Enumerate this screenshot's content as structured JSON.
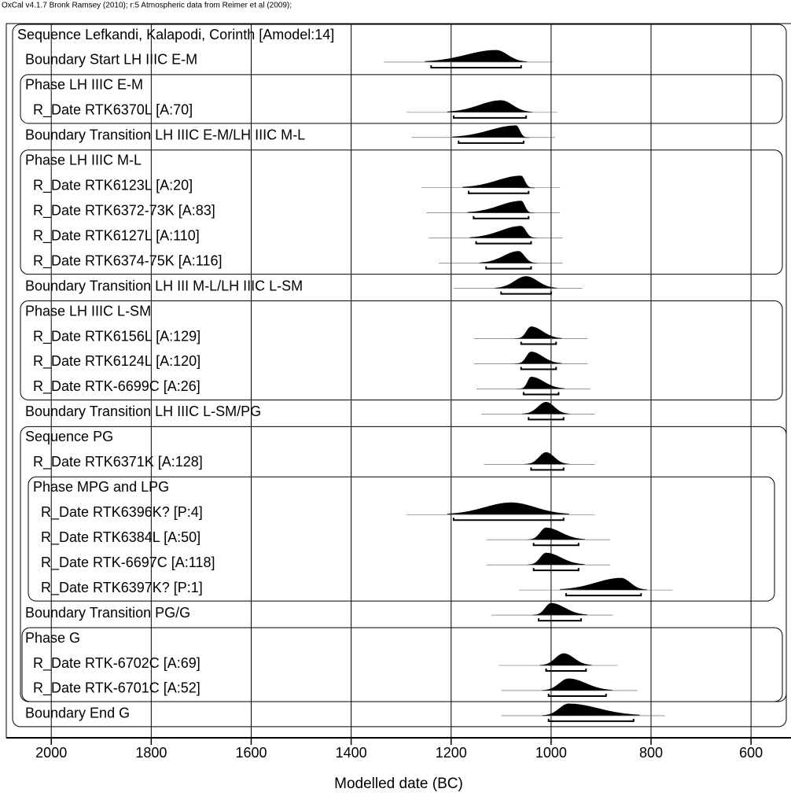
{
  "chart_data": {
    "type": "oxcal",
    "note": "OxCal v4.1.7 Bronk Ramsey (2010); r:5 Atmospheric data from Reimer et al (2009);",
    "xlabel": "Modelled date (BC)",
    "xlim": [
      2090,
      520
    ],
    "xticks": [
      2000,
      1800,
      1600,
      1400,
      1200,
      1000,
      800,
      600
    ],
    "grid": true,
    "color": "#000000",
    "rows": [
      {
        "label": "Sequence Lefkandi, Kalapodi, Corinth [Amodel:14]"
      },
      {
        "label": "Boundary Start LH IIIC E-M",
        "range": [
          1240,
          1060
        ],
        "mode": 1110
      },
      {
        "label": "Phase LH IIIC E-M"
      },
      {
        "label": "R_Date RTK6370L [A:70]",
        "range": [
          1195,
          1050
        ],
        "mode": 1100
      },
      {
        "label": "Boundary Transition LH IIIC E-M/LH IIIC M-L",
        "range": [
          1185,
          1055
        ],
        "mode": 1070
      },
      {
        "label": "Phase LH IIIC M-L"
      },
      {
        "label": "R_Date RTK6123L [A:20]",
        "range": [
          1165,
          1045
        ],
        "mode": 1060
      },
      {
        "label": "R_Date RTK6372-73K [A:83]",
        "range": [
          1155,
          1045
        ],
        "mode": 1060
      },
      {
        "label": "R_Date RTK6127L [A:110]",
        "range": [
          1150,
          1040
        ],
        "mode": 1060
      },
      {
        "label": "R_Date RTK6374-75K [A:116]",
        "range": [
          1130,
          1040
        ],
        "mode": 1065
      },
      {
        "label": "Boundary Transition LH III M-L/LH IIIC L-SM",
        "range": [
          1100,
          1000
        ],
        "mode": 1050
      },
      {
        "label": "Phase LH IIIC L-SM"
      },
      {
        "label": "R_Date RTK6156L [A:129]",
        "range": [
          1060,
          990
        ],
        "mode": 1040
      },
      {
        "label": "R_Date RTK6124L [A:120]",
        "range": [
          1060,
          990
        ],
        "mode": 1040
      },
      {
        "label": "R_Date RTK-6699C [A:26]",
        "range": [
          1055,
          985
        ],
        "mode": 1040
      },
      {
        "label": "Boundary Transition LH IIIC L-SM/PG",
        "range": [
          1045,
          975
        ],
        "mode": 1010
      },
      {
        "label": "Sequence PG"
      },
      {
        "label": "R_Date RTK6371K [A:128]",
        "range": [
          1040,
          975
        ],
        "mode": 1010
      },
      {
        "label": "Phase MPG and LPG"
      },
      {
        "label": "R_Date RTK6396K? [P:4]",
        "range": [
          1195,
          975
        ],
        "mode": 1080
      },
      {
        "label": "R_Date RTK6384L [A:50]",
        "range": [
          1035,
          945
        ],
        "mode": 1010
      },
      {
        "label": "R_Date RTK-6697C [A:118]",
        "range": [
          1035,
          945
        ],
        "mode": 1010
      },
      {
        "label": "R_Date RTK6397K? [P:1]",
        "range": [
          970,
          820
        ],
        "mode": 860
      },
      {
        "label": "Boundary Transition PG/G",
        "range": [
          1025,
          940
        ],
        "mode": 1000
      },
      {
        "label": "Phase G"
      },
      {
        "label": "R_Date RTK-6702C [A:69]",
        "range": [
          1010,
          930
        ],
        "mode": 975
      },
      {
        "label": "R_Date RTK-6701C [A:52]",
        "range": [
          1005,
          890
        ],
        "mode": 965
      },
      {
        "label": "Boundary End G",
        "range": [
          1005,
          835
        ],
        "mode": 965
      }
    ]
  }
}
